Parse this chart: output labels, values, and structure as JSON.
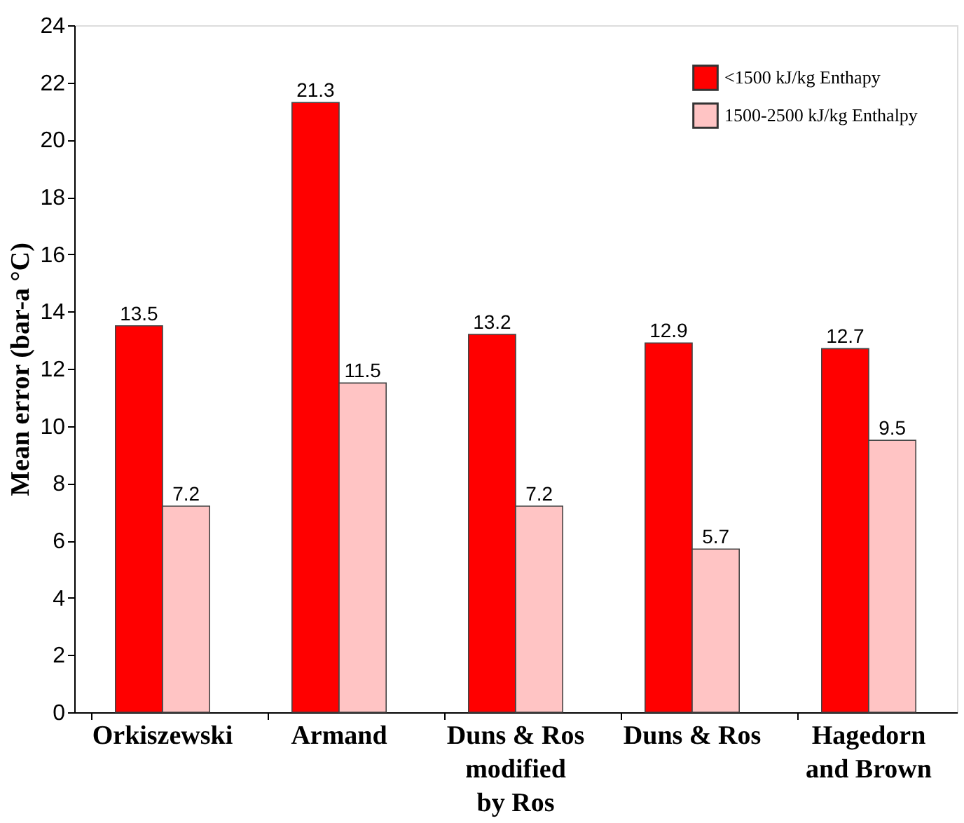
{
  "chart_data": {
    "type": "bar",
    "ylabel": "Mean error (bar-a °C)",
    "categories": [
      "Orkiszewski",
      "Armand",
      "Duns & Ros\nmodified\nby Ros",
      "Duns & Ros",
      "Hagedorn\nand Brown"
    ],
    "series": [
      {
        "name": "<1500 kJ/kg Enthapy",
        "color": "#ff0000",
        "values": [
          13.5,
          21.3,
          13.2,
          12.9,
          12.7
        ]
      },
      {
        "name": "1500-2500 kJ/kg Enthalpy",
        "color": "#ffc4c4",
        "values": [
          7.2,
          11.5,
          7.2,
          5.7,
          9.5
        ]
      }
    ],
    "ylim": [
      0,
      24
    ],
    "yticks": [
      0,
      2,
      4,
      6,
      8,
      10,
      12,
      14,
      16,
      18,
      20,
      22,
      24
    ],
    "grid": false,
    "legend": "top right",
    "data_labels": true
  }
}
